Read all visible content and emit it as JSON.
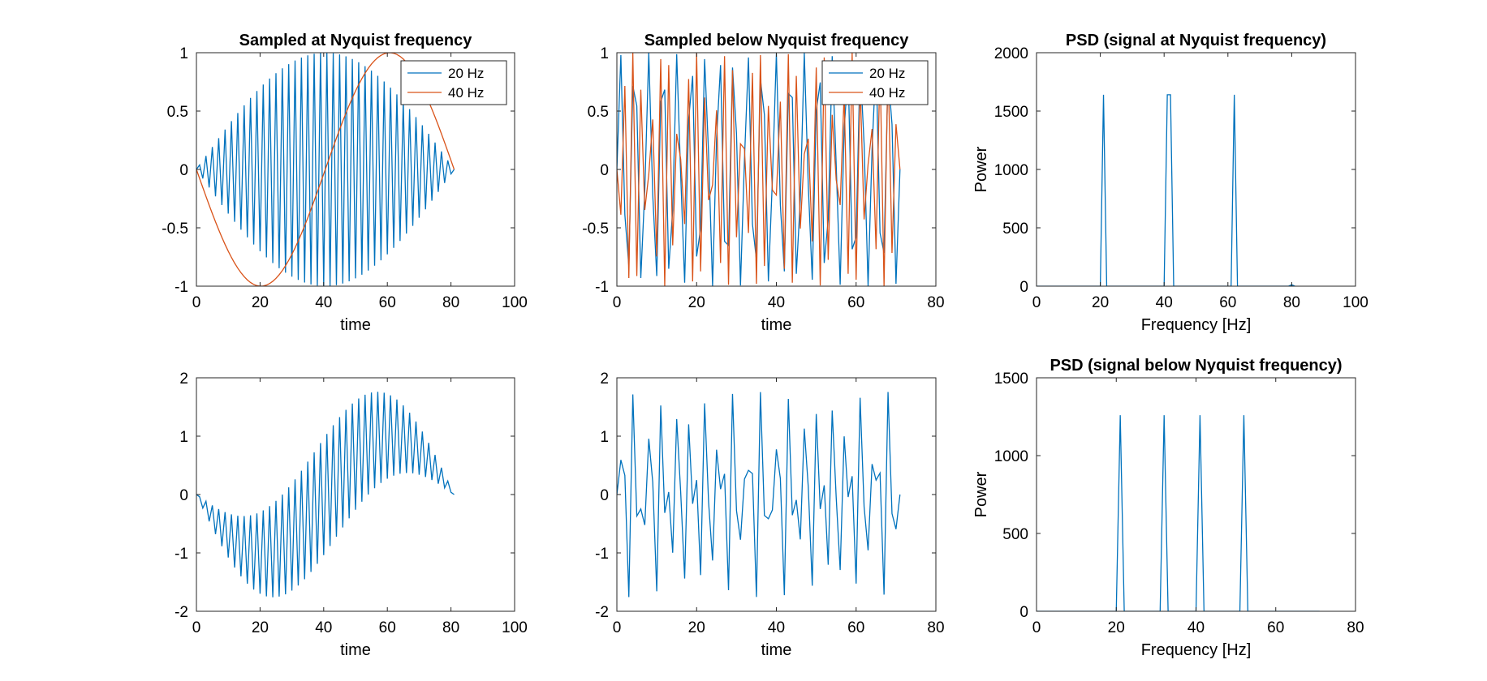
{
  "chart_data": [
    {
      "type": "line",
      "title": "Sampled at Nyquist frequency",
      "xlabel": "time",
      "ylabel": "",
      "xlim": [
        0,
        100
      ],
      "ylim": [
        -1,
        1
      ],
      "xticks": [
        "0",
        "20",
        "40",
        "60",
        "80",
        "100"
      ],
      "yticks": [
        "-1",
        "-0.5",
        "0",
        "0.5",
        "1"
      ],
      "legend": {
        "position": "top-right"
      },
      "series": [
        {
          "name": "20 Hz",
          "color": "#0072BD",
          "generator": {
            "freq_hz": 20,
            "fs": 40.5,
            "n": 82,
            "amp": 1,
            "mode": "sine"
          }
        },
        {
          "name": "40 Hz",
          "color": "#D95319",
          "generator": {
            "freq_hz": 40,
            "fs": 40.5,
            "n": 82,
            "amp": 1,
            "mode": "sine"
          }
        }
      ]
    },
    {
      "type": "line",
      "title": "Sampled below Nyquist frequency",
      "xlabel": "time",
      "ylabel": "",
      "xlim": [
        0,
        80
      ],
      "ylim": [
        -1,
        1
      ],
      "xticks": [
        "0",
        "20",
        "40",
        "60",
        "80"
      ],
      "yticks": [
        "-1",
        "-0.5",
        "0",
        "0.5",
        "1"
      ],
      "legend": {
        "position": "top-right"
      },
      "series": [
        {
          "name": "20 Hz",
          "color": "#0072BD",
          "generator": {
            "freq_hz": 20,
            "fs": 71,
            "n": 72,
            "amp": 1,
            "mode": "sine"
          }
        },
        {
          "name": "40 Hz",
          "color": "#D95319",
          "generator": {
            "freq_hz": 40,
            "fs": 71,
            "n": 72,
            "amp": 1,
            "mode": "sine"
          }
        }
      ]
    },
    {
      "type": "line",
      "title": "PSD (signal at Nyquist frequency)",
      "xlabel": "Frequency [Hz]",
      "ylabel": "Power",
      "xlim": [
        0,
        100
      ],
      "ylim": [
        0,
        2000
      ],
      "xticks": [
        "0",
        "20",
        "40",
        "60",
        "80",
        "100"
      ],
      "yticks": [
        "0",
        "500",
        "1000",
        "1500",
        "2000"
      ],
      "series": [
        {
          "name": "",
          "color": "#0072BD",
          "x": [
            0,
            20,
            21,
            22,
            40,
            41,
            42,
            43,
            61,
            62,
            63,
            79,
            80,
            81
          ],
          "y": [
            0,
            0,
            1640,
            0,
            0,
            1640,
            1640,
            0,
            0,
            1640,
            0,
            0,
            12,
            0
          ]
        }
      ]
    },
    {
      "type": "line",
      "title": "",
      "xlabel": "time",
      "ylabel": "",
      "xlim": [
        0,
        100
      ],
      "ylim": [
        -2,
        2
      ],
      "xticks": [
        "0",
        "20",
        "40",
        "60",
        "80",
        "100"
      ],
      "yticks": [
        "-2",
        "-1",
        "0",
        "1",
        "2"
      ],
      "series": [
        {
          "name": "",
          "color": "#0072BD",
          "generator": {
            "freq_hz": 20,
            "freq2_hz": 40,
            "fs": 40.5,
            "n": 82,
            "amp": 1,
            "mode": "sum"
          }
        }
      ]
    },
    {
      "type": "line",
      "title": "",
      "xlabel": "time",
      "ylabel": "",
      "xlim": [
        0,
        80
      ],
      "ylim": [
        -2,
        2
      ],
      "xticks": [
        "0",
        "20",
        "40",
        "60",
        "80"
      ],
      "yticks": [
        "-2",
        "-1",
        "0",
        "1",
        "2"
      ],
      "series": [
        {
          "name": "",
          "color": "#0072BD",
          "generator": {
            "freq_hz": 20,
            "freq2_hz": 40,
            "fs": 71,
            "n": 72,
            "amp": 1,
            "mode": "sum"
          }
        }
      ]
    },
    {
      "type": "line",
      "title": "PSD (signal below Nyquist frequency)",
      "xlabel": "Frequency [Hz]",
      "ylabel": "Power",
      "xlim": [
        0,
        80
      ],
      "ylim": [
        0,
        1500
      ],
      "xticks": [
        "0",
        "20",
        "40",
        "60",
        "80"
      ],
      "yticks": [
        "0",
        "500",
        "1000",
        "1500"
      ],
      "series": [
        {
          "name": "",
          "color": "#0072BD",
          "x": [
            0,
            20,
            21,
            22,
            31,
            32,
            33,
            40,
            41,
            42,
            51,
            52,
            53,
            71
          ],
          "y": [
            0,
            0,
            1260,
            0,
            0,
            1260,
            0,
            0,
            1260,
            0,
            0,
            1260,
            0,
            0
          ]
        }
      ]
    }
  ]
}
